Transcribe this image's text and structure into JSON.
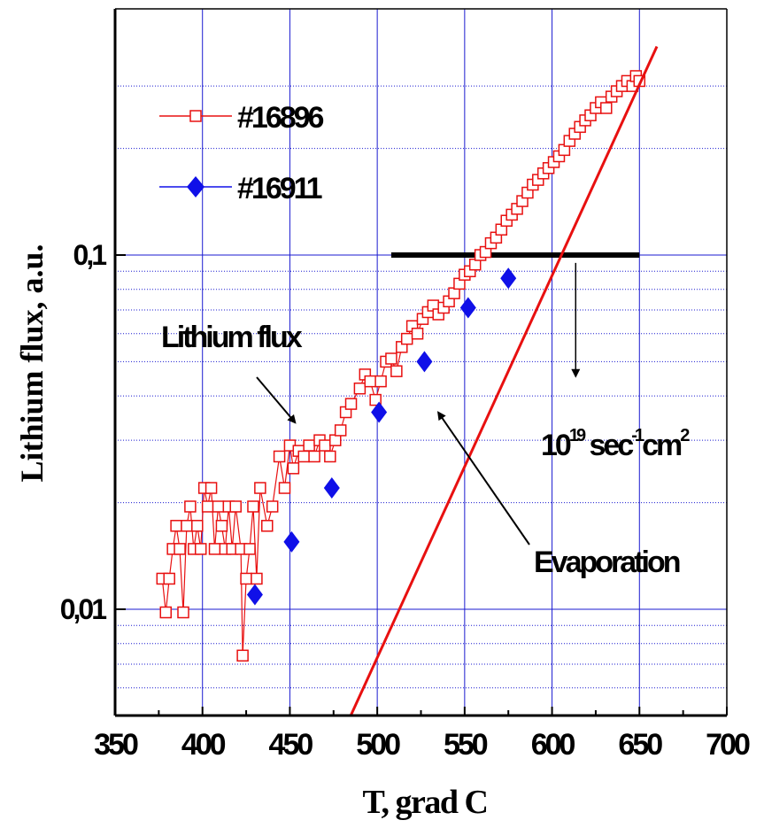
{
  "chart_data": {
    "type": "scatter",
    "xlabel": "T, grad C",
    "ylabel": "Lithium flux, a.u.",
    "xlim": [
      350,
      700
    ],
    "ylim": [
      0.005,
      0.4
    ],
    "y_scale": "log",
    "x_ticks": [
      350,
      400,
      450,
      500,
      550,
      600,
      650,
      700
    ],
    "x_tick_labels": [
      "350",
      "400",
      "450",
      "500",
      "550",
      "600",
      "650",
      "700"
    ],
    "y_ticks": [
      0.01,
      0.1
    ],
    "y_tick_labels": [
      "0,01",
      "0,1"
    ],
    "grid": true,
    "legend_position": "top-left",
    "series": [
      {
        "name": "#16896",
        "marker": "open-square",
        "connected": true,
        "color": "#e81010",
        "x": [
          377,
          379,
          381,
          383,
          385,
          387,
          389,
          391,
          393,
          395,
          397,
          399,
          401,
          403,
          405,
          407,
          409,
          411,
          413,
          415,
          417,
          419,
          422,
          423,
          425,
          427,
          429,
          431,
          433,
          437,
          440,
          444,
          447,
          450,
          452,
          455,
          458,
          461,
          464,
          467,
          470,
          473,
          476,
          479,
          482,
          485,
          490,
          493,
          496,
          499,
          502,
          505,
          508,
          511,
          514,
          517,
          520,
          523,
          526,
          529,
          532,
          535,
          538,
          541,
          544,
          547,
          550,
          553,
          556,
          559,
          562,
          565,
          568,
          571,
          574,
          577,
          580,
          583,
          586,
          589,
          592,
          595,
          598,
          601,
          604,
          607,
          610,
          613,
          616,
          619,
          622,
          625,
          628,
          631,
          634,
          637,
          640,
          643,
          646,
          648,
          650
        ],
        "y": [
          0.0122,
          0.0098,
          0.0122,
          0.0148,
          0.0172,
          0.0148,
          0.0098,
          0.0172,
          0.0195,
          0.0148,
          0.0172,
          0.0148,
          0.022,
          0.0195,
          0.022,
          0.0148,
          0.0195,
          0.0172,
          0.0148,
          0.0195,
          0.0148,
          0.0195,
          0.0148,
          0.0074,
          0.0122,
          0.0148,
          0.0195,
          0.0122,
          0.022,
          0.0172,
          0.0195,
          0.027,
          0.022,
          0.029,
          0.025,
          0.028,
          0.027,
          0.029,
          0.027,
          0.03,
          0.029,
          0.027,
          0.03,
          0.032,
          0.036,
          0.038,
          0.042,
          0.046,
          0.044,
          0.039,
          0.044,
          0.05,
          0.051,
          0.047,
          0.055,
          0.058,
          0.063,
          0.06,
          0.066,
          0.069,
          0.072,
          0.068,
          0.071,
          0.074,
          0.078,
          0.083,
          0.088,
          0.09,
          0.094,
          0.1,
          0.102,
          0.108,
          0.112,
          0.118,
          0.125,
          0.13,
          0.135,
          0.142,
          0.15,
          0.158,
          0.163,
          0.17,
          0.176,
          0.183,
          0.19,
          0.198,
          0.21,
          0.22,
          0.23,
          0.24,
          0.248,
          0.26,
          0.27,
          0.26,
          0.28,
          0.29,
          0.3,
          0.31,
          0.3,
          0.32,
          0.31
        ]
      },
      {
        "name": "#16911",
        "marker": "filled-diamond",
        "connected": false,
        "color": "#1010e8",
        "x": [
          430,
          451,
          474,
          501,
          527,
          552,
          575
        ],
        "y": [
          0.011,
          0.0155,
          0.022,
          0.036,
          0.05,
          0.071,
          0.086
        ]
      },
      {
        "name": "Evaporation",
        "marker": "none",
        "connected": true,
        "color": "#e81010",
        "x": [
          485,
          660
        ],
        "y": [
          0.00503,
          0.388
        ]
      }
    ],
    "reference_line": {
      "x": [
        508,
        650
      ],
      "y": 0.1,
      "color": "#000000"
    },
    "annotations": [
      {
        "text": "Lithium flux",
        "x": 430,
        "y": 0.055,
        "arrow_to": [
          455,
          0.03
        ]
      },
      {
        "text": "Evaporation",
        "x": 615,
        "y": 0.0135,
        "arrow_to": [
          540,
          0.037
        ]
      },
      {
        "base": "10",
        "exp1": "19",
        "mid": " sec",
        "exp2": "-1",
        "tail": "cm",
        "exp3": "2",
        "x": 604,
        "y": 0.027,
        "arrow_from": [
          611,
          0.095
        ],
        "arrow_to": [
          611,
          0.045
        ]
      }
    ]
  }
}
